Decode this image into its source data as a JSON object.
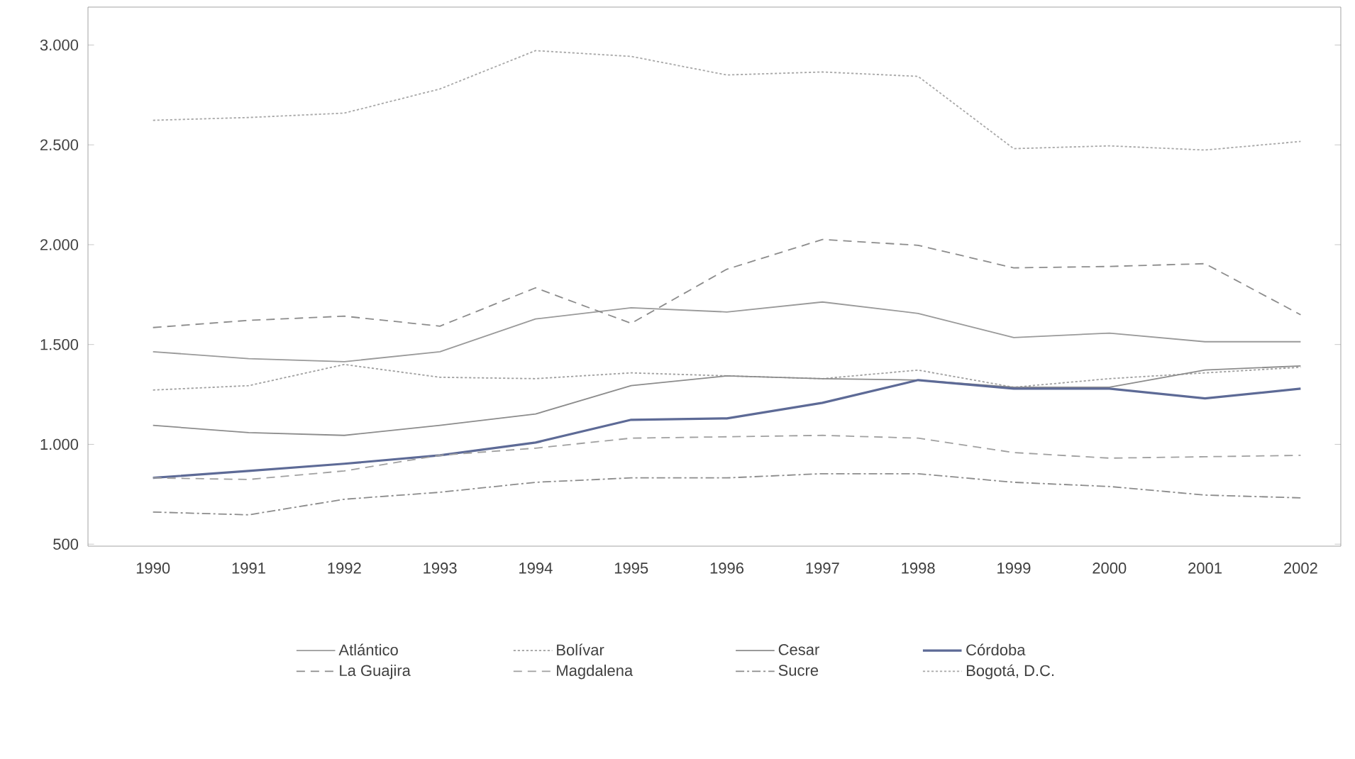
{
  "chart_data": {
    "type": "line",
    "categories": [
      "1990",
      "1991",
      "1992",
      "1993",
      "1994",
      "1995",
      "1996",
      "1997",
      "1998",
      "1999",
      "2000",
      "2001",
      "2002"
    ],
    "ylim": [
      490,
      3190
    ],
    "yticks": [
      {
        "value": 500,
        "label": "500"
      },
      {
        "value": 1000,
        "label": "1.000"
      },
      {
        "value": 1500,
        "label": "1.500"
      },
      {
        "value": 2000,
        "label": "2.000"
      },
      {
        "value": 2500,
        "label": "2.500"
      },
      {
        "value": 3000,
        "label": "3.000"
      }
    ],
    "grid": false,
    "legend": "bottom",
    "marker": "none",
    "series": [
      {
        "name": "Atlántico",
        "color": "#9a9a9a",
        "line_style": "solid",
        "values": [
          1464,
          1429,
          1414,
          1464,
          1628,
          1684,
          1663,
          1713,
          1656,
          1535,
          1557,
          1514,
          1514
        ]
      },
      {
        "name": "Bolívar",
        "color": "#a0a0a0",
        "line_style": "dotted",
        "values": [
          1272,
          1294,
          1400,
          1336,
          1329,
          1358,
          1343,
          1329,
          1372,
          1286,
          1329,
          1358,
          1386
        ]
      },
      {
        "name": "Cesar",
        "color": "#8c8c8c",
        "line_style": "solid",
        "values": [
          1095,
          1059,
          1045,
          1095,
          1152,
          1294,
          1343,
          1329,
          1322,
          1286,
          1286,
          1372,
          1393
        ]
      },
      {
        "name": "Córdoba",
        "color": "#5d6a96",
        "line_style": "solid",
        "values": [
          832,
          867,
          903,
          945,
          1009,
          1123,
          1130,
          1208,
          1322,
          1279,
          1279,
          1230,
          1279
        ]
      },
      {
        "name": "La Guajira",
        "color": "#8c8c8c",
        "line_style": "dashed",
        "values": [
          1585,
          1621,
          1642,
          1592,
          1784,
          1606,
          1877,
          2026,
          1997,
          1884,
          1891,
          1905,
          1649
        ]
      },
      {
        "name": "Magdalena",
        "color": "#a0a0a0",
        "line_style": "dashed",
        "values": [
          832,
          824,
          867,
          945,
          981,
          1031,
          1038,
          1045,
          1031,
          959,
          931,
          938,
          945
        ]
      },
      {
        "name": "Sucre",
        "color": "#8c8c8c",
        "line_style": "dashdot",
        "values": [
          661,
          647,
          725,
          760,
          810,
          832,
          832,
          853,
          853,
          810,
          789,
          746,
          732
        ]
      },
      {
        "name": "Bogotá, D.C.",
        "color": "#a8a8a8",
        "line_style": "dotted",
        "values": [
          2623,
          2637,
          2659,
          2780,
          2972,
          2943,
          2850,
          2865,
          2843,
          2481,
          2495,
          2474,
          2517
        ]
      }
    ]
  }
}
